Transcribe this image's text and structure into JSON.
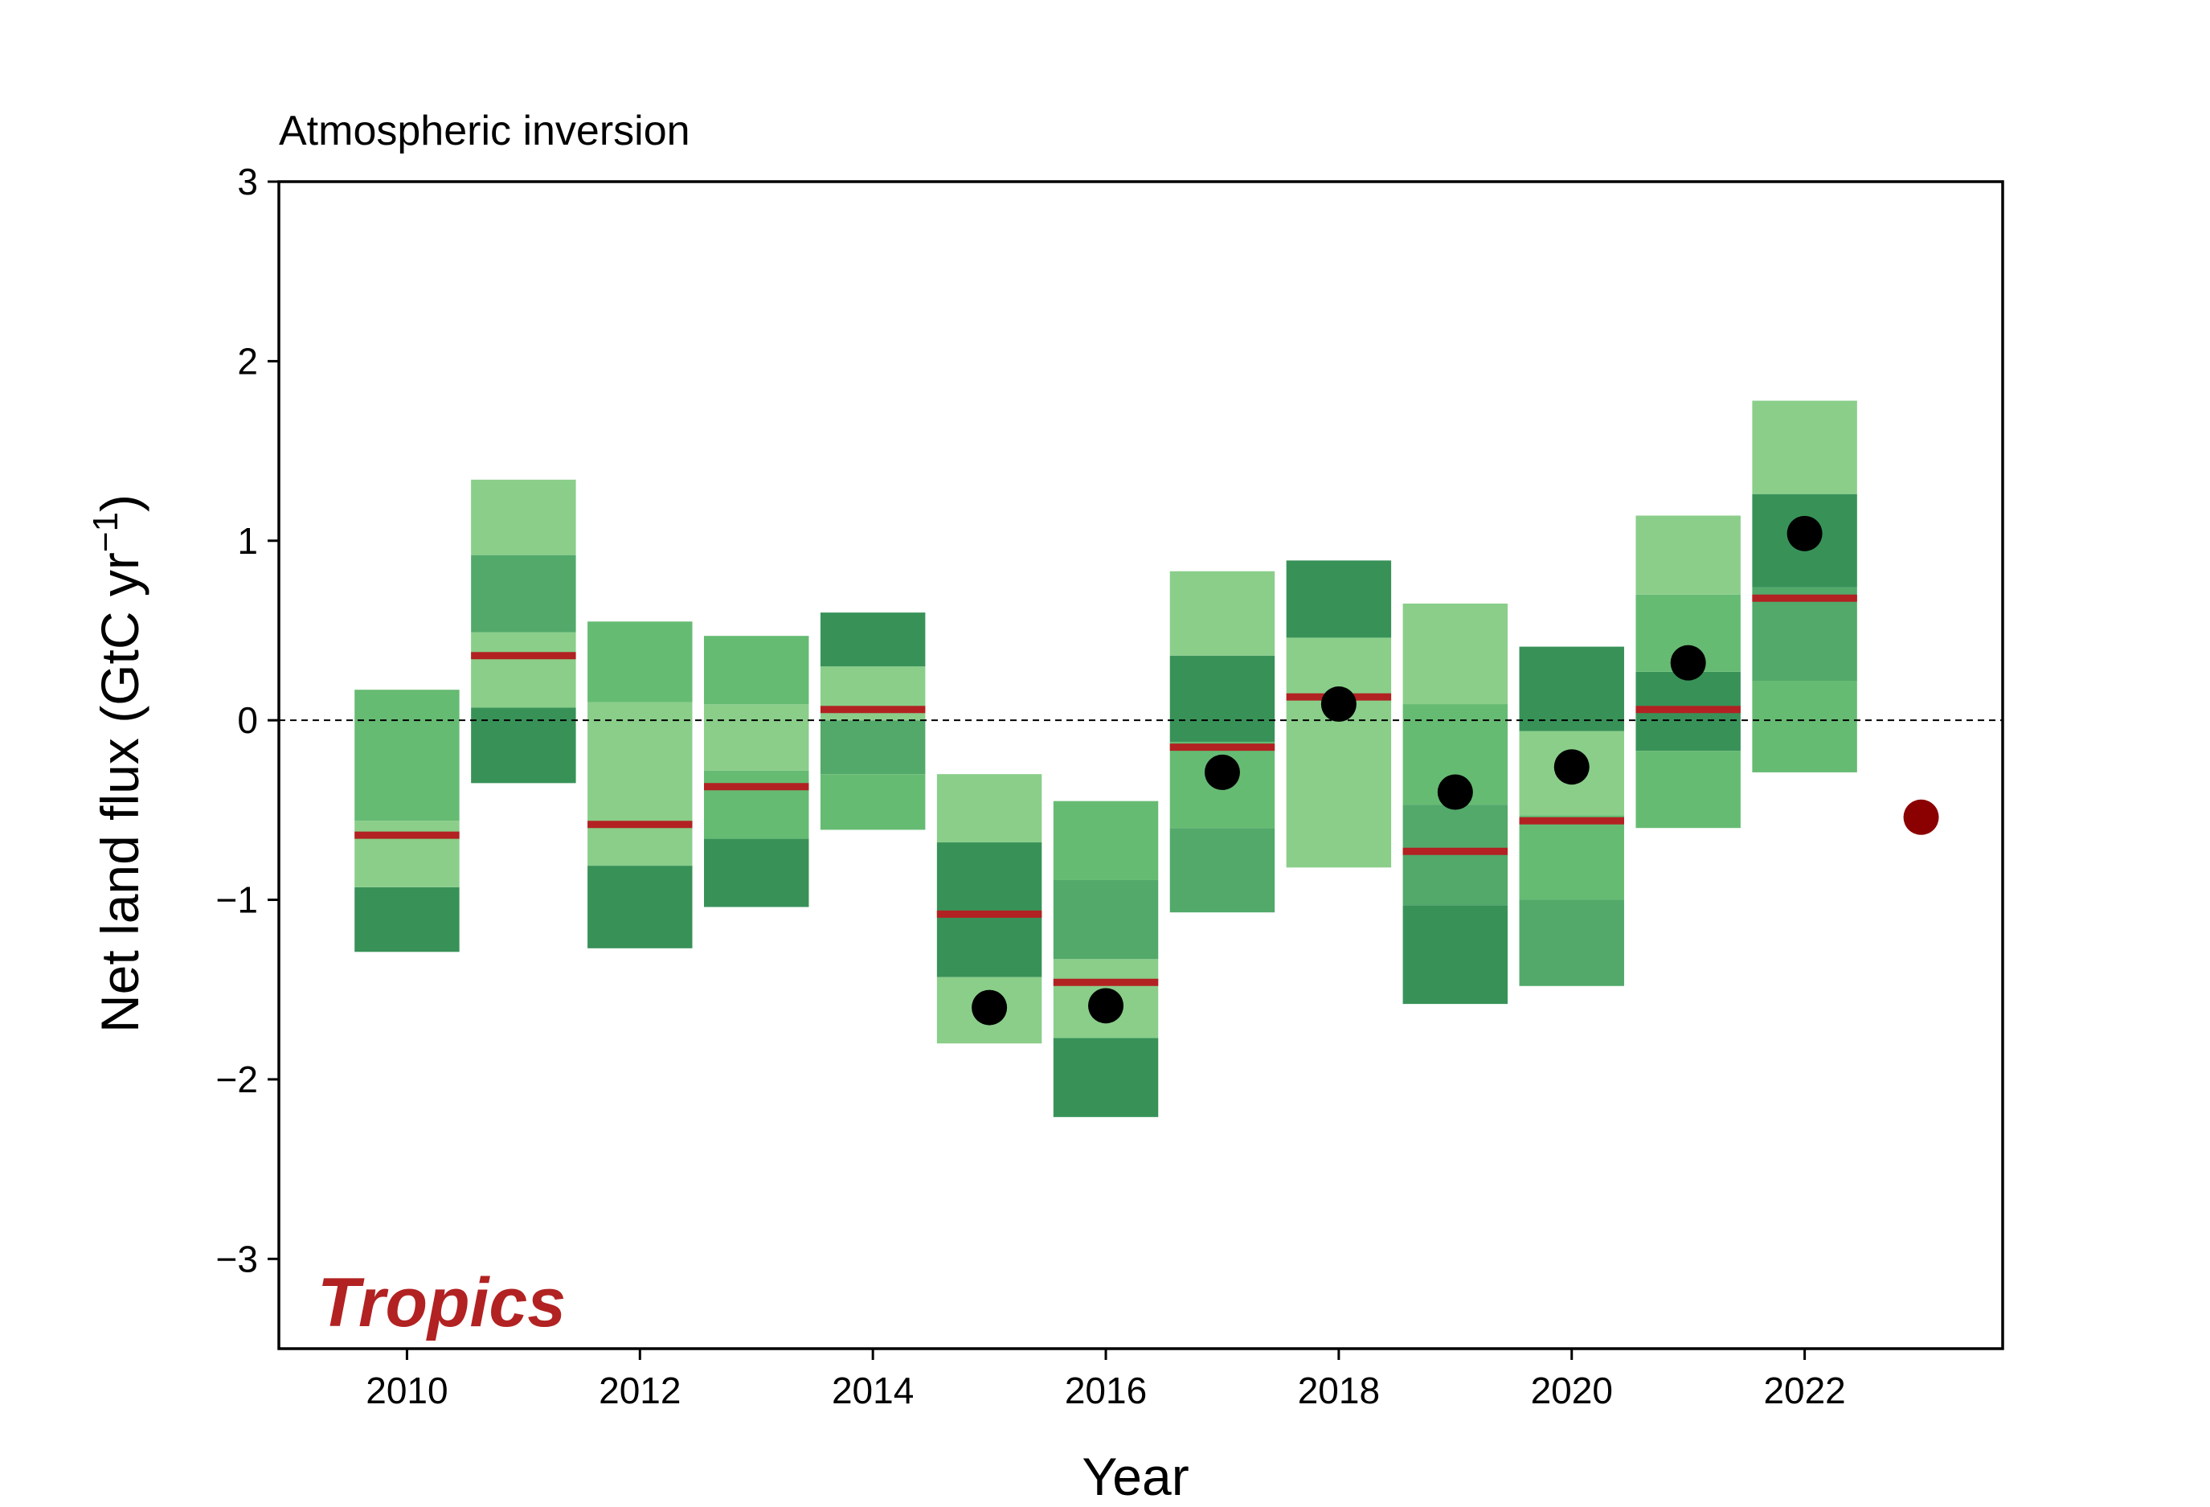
{
  "chart_data": {
    "type": "bar",
    "subtitle": "Atmospheric inversion",
    "region_label": "Tropics",
    "xlabel": "Year",
    "ylabel": "Net land flux (GtC yr",
    "ylabel_sup": "−1",
    "ylabel_close": ")",
    "xlim": [
      2008.9,
      2023.7
    ],
    "ylim": [
      -3.5,
      3
    ],
    "xticks": [
      2010,
      2012,
      2014,
      2016,
      2018,
      2020,
      2022
    ],
    "yticks": [
      -3,
      -2,
      -1,
      0,
      1,
      2,
      3
    ],
    "ytick_labels": [
      "−3",
      "−2",
      "−1",
      "0",
      "1",
      "2",
      "3"
    ],
    "zero_line": true,
    "grid": false,
    "colors": {
      "shade_light": "#8ace8a",
      "shade_medium_light": "#66bb73",
      "shade_medium": "#52a96a",
      "shade_dark": "#389258",
      "median": "#b22222",
      "observed": "#000000",
      "current_year": "#8b0000"
    },
    "years": [
      {
        "year": 2010,
        "bands": [
          [
            -1.29,
            -0.93,
            "shade_dark"
          ],
          [
            -0.93,
            -0.56,
            "shade_light"
          ],
          [
            -0.56,
            0.17,
            "shade_medium_light"
          ]
        ],
        "median": -0.64,
        "point": null
      },
      {
        "year": 2011,
        "bands": [
          [
            -0.35,
            0.07,
            "shade_dark"
          ],
          [
            0.07,
            0.49,
            "shade_light"
          ],
          [
            0.49,
            0.92,
            "shade_medium"
          ],
          [
            0.92,
            1.34,
            "shade_light"
          ]
        ],
        "median": 0.36,
        "point": null
      },
      {
        "year": 2012,
        "bands": [
          [
            -1.27,
            -0.81,
            "shade_dark"
          ],
          [
            -0.81,
            0.1,
            "shade_light"
          ],
          [
            0.1,
            0.55,
            "shade_medium_light"
          ]
        ],
        "median": -0.58,
        "point": null
      },
      {
        "year": 2013,
        "bands": [
          [
            -1.04,
            -0.66,
            "shade_dark"
          ],
          [
            -0.66,
            -0.28,
            "shade_medium_light"
          ],
          [
            -0.28,
            0.09,
            "shade_light"
          ],
          [
            0.09,
            0.47,
            "shade_medium_light"
          ]
        ],
        "median": -0.37,
        "point": null
      },
      {
        "year": 2014,
        "bands": [
          [
            -0.61,
            -0.3,
            "shade_medium_light"
          ],
          [
            -0.3,
            0.0,
            "shade_medium"
          ],
          [
            0.0,
            0.3,
            "shade_light"
          ],
          [
            0.3,
            0.6,
            "shade_dark"
          ]
        ],
        "median": 0.06,
        "point": null
      },
      {
        "year": 2015,
        "bands": [
          [
            -1.8,
            -1.43,
            "shade_light"
          ],
          [
            -1.43,
            -0.68,
            "shade_dark"
          ],
          [
            -0.68,
            -0.3,
            "shade_light"
          ]
        ],
        "median": -1.08,
        "point": -1.6
      },
      {
        "year": 2016,
        "bands": [
          [
            -2.21,
            -1.77,
            "shade_dark"
          ],
          [
            -1.77,
            -1.33,
            "shade_light"
          ],
          [
            -1.33,
            -0.89,
            "shade_medium"
          ],
          [
            -0.89,
            -0.45,
            "shade_medium_light"
          ]
        ],
        "median": -1.46,
        "point": -1.59
      },
      {
        "year": 2017,
        "bands": [
          [
            -1.07,
            -0.6,
            "shade_medium"
          ],
          [
            -0.6,
            -0.12,
            "shade_medium_light"
          ],
          [
            -0.12,
            0.36,
            "shade_dark"
          ],
          [
            0.36,
            0.83,
            "shade_light"
          ]
        ],
        "median": -0.15,
        "point": -0.29
      },
      {
        "year": 2018,
        "bands": [
          [
            -0.82,
            0.46,
            "shade_light"
          ],
          [
            0.46,
            0.89,
            "shade_dark"
          ]
        ],
        "median": 0.13,
        "point": 0.09
      },
      {
        "year": 2019,
        "bands": [
          [
            -1.58,
            -1.03,
            "shade_dark"
          ],
          [
            -1.03,
            -0.47,
            "shade_medium"
          ],
          [
            -0.47,
            0.09,
            "shade_medium_light"
          ],
          [
            0.09,
            0.65,
            "shade_light"
          ]
        ],
        "median": -0.73,
        "point": -0.4
      },
      {
        "year": 2020,
        "bands": [
          [
            -1.48,
            -1.0,
            "shade_medium"
          ],
          [
            -1.0,
            -0.53,
            "shade_medium_light"
          ],
          [
            -0.53,
            -0.06,
            "shade_light"
          ],
          [
            -0.06,
            0.41,
            "shade_dark"
          ]
        ],
        "median": -0.56,
        "point": -0.26
      },
      {
        "year": 2021,
        "bands": [
          [
            -0.6,
            -0.17,
            "shade_medium_light"
          ],
          [
            -0.17,
            0.27,
            "shade_dark"
          ],
          [
            0.27,
            0.7,
            "shade_medium_light"
          ],
          [
            0.7,
            1.14,
            "shade_light"
          ]
        ],
        "median": 0.06,
        "point": 0.32
      },
      {
        "year": 2022,
        "bands": [
          [
            -0.29,
            0.22,
            "shade_medium_light"
          ],
          [
            0.22,
            0.74,
            "shade_medium"
          ],
          [
            0.74,
            1.26,
            "shade_dark"
          ],
          [
            1.26,
            1.78,
            "shade_light"
          ]
        ],
        "median": 0.68,
        "point": 1.04
      }
    ],
    "current_point": {
      "year": 2023,
      "value": -0.54
    }
  }
}
